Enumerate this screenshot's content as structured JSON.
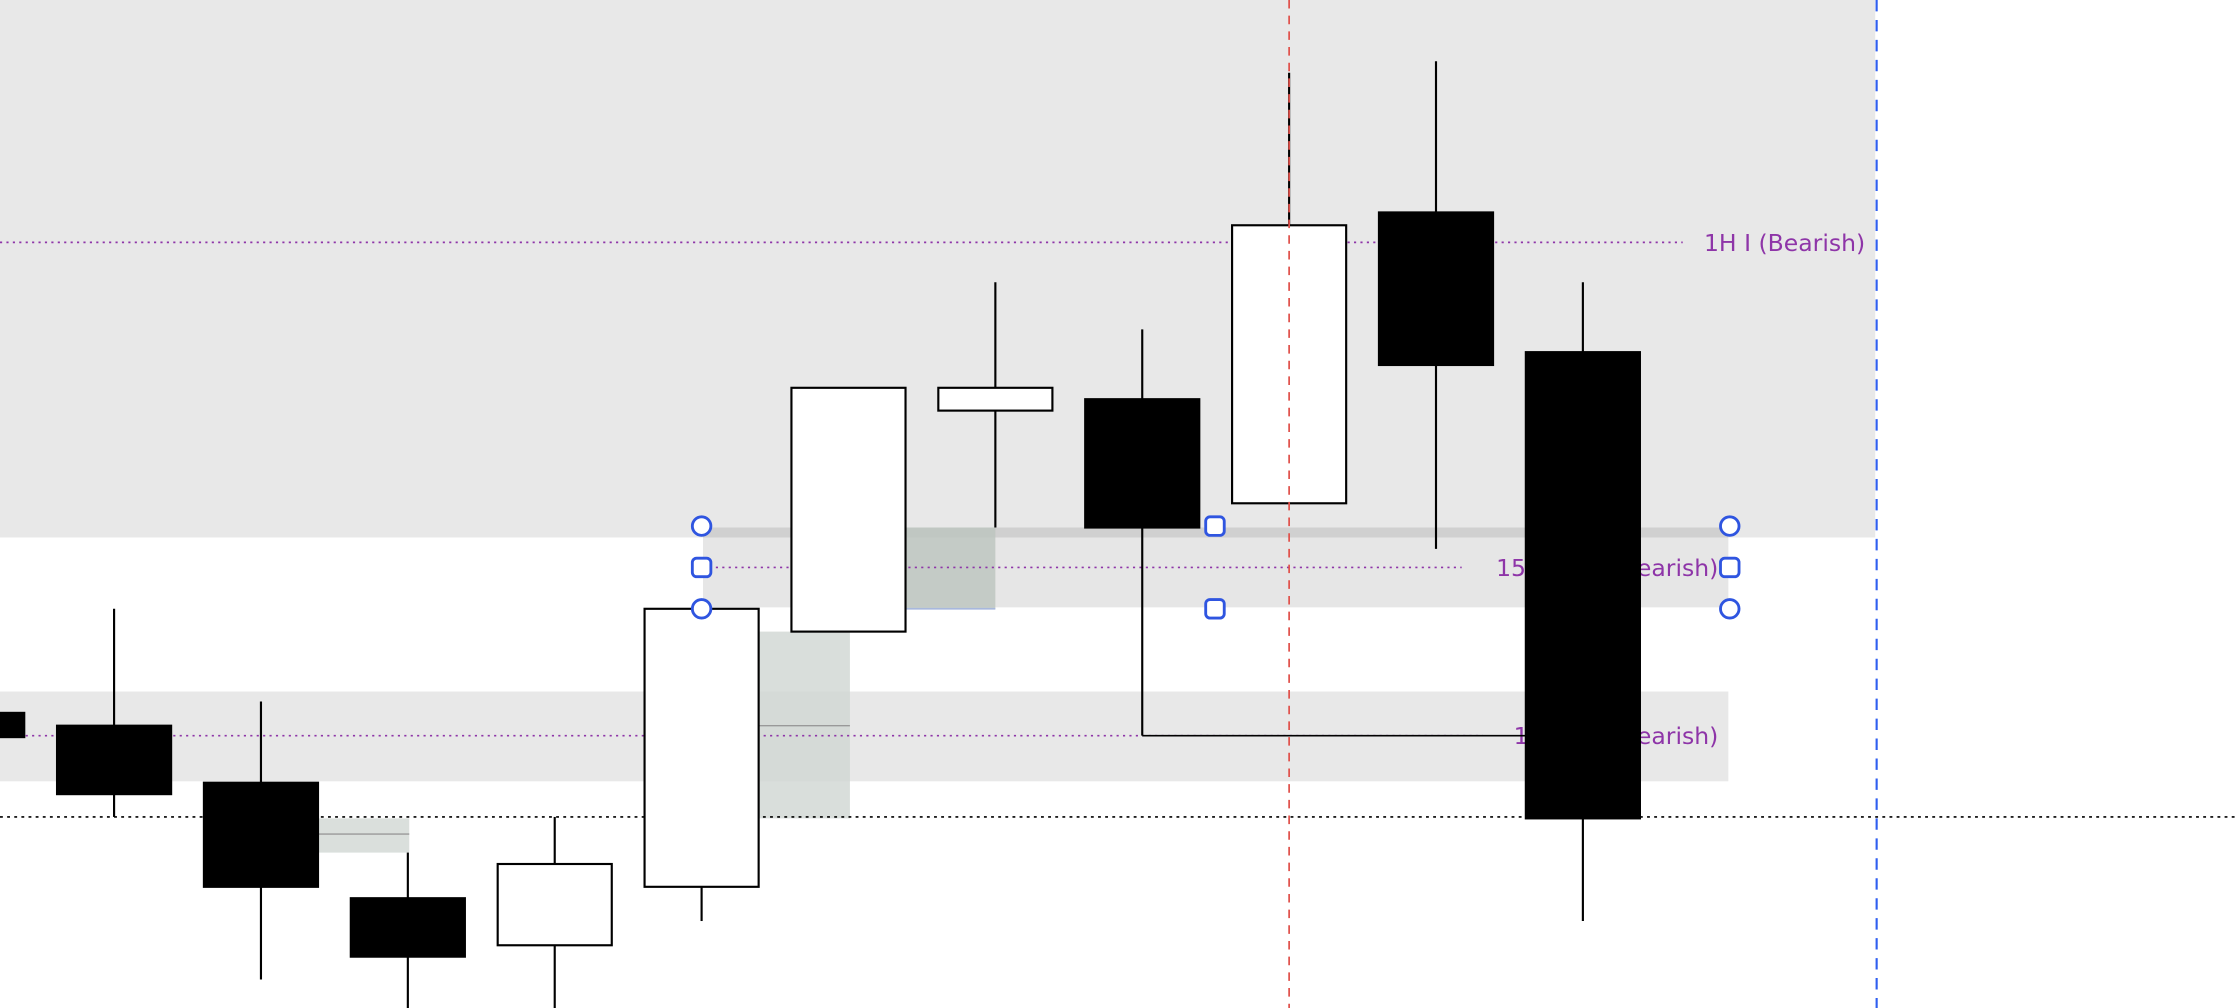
{
  "chart_data": {
    "type": "candlestick",
    "title": "",
    "xlabel": "",
    "ylabel": "",
    "grid": false,
    "bullish_color": "#ffffff",
    "bearish_color": "#000000",
    "candles": [
      {
        "o": 207,
        "h": 207,
        "l": 190,
        "c": 190
      },
      {
        "o": 198,
        "h": 280,
        "l": 134,
        "c": 150
      },
      {
        "o": 158,
        "h": 215,
        "l": 20,
        "c": 85
      },
      {
        "o": 77,
        "h": 109,
        "l": 0,
        "c": 36
      },
      {
        "o": 44,
        "h": 134,
        "l": 0,
        "c": 101
      },
      {
        "o": 85,
        "h": 280,
        "l": 61,
        "c": 280
      },
      {
        "o": 264,
        "h": 435,
        "l": 264,
        "c": 435
      },
      {
        "o": 419,
        "h": 509,
        "l": 337,
        "c": 435
      },
      {
        "o": 427,
        "h": 476,
        "l": 191,
        "c": 337
      },
      {
        "o": 354,
        "h": 656,
        "l": 354,
        "c": 549
      },
      {
        "o": 558,
        "h": 664,
        "l": 322,
        "c": 451
      },
      {
        "o": 460,
        "h": 509,
        "l": 61,
        "c": 133
      }
    ],
    "levels": [
      {
        "label": "1H I (Bearish)",
        "price": 537,
        "color": "#8e35a8"
      },
      {
        "label": "15M IRT I (Bearish)",
        "price": 309,
        "color": "#8e35a8",
        "selected": true
      },
      {
        "label": "1H IRT I (Bearish)",
        "price": 191,
        "color": "#8e35a8"
      }
    ],
    "current_price": 134,
    "zone_color": "#e8e8e8",
    "selection_handle_color": "#2f55e0",
    "cursor_line_color": "#e0504a",
    "session_line_color": "#2f5ff0"
  }
}
